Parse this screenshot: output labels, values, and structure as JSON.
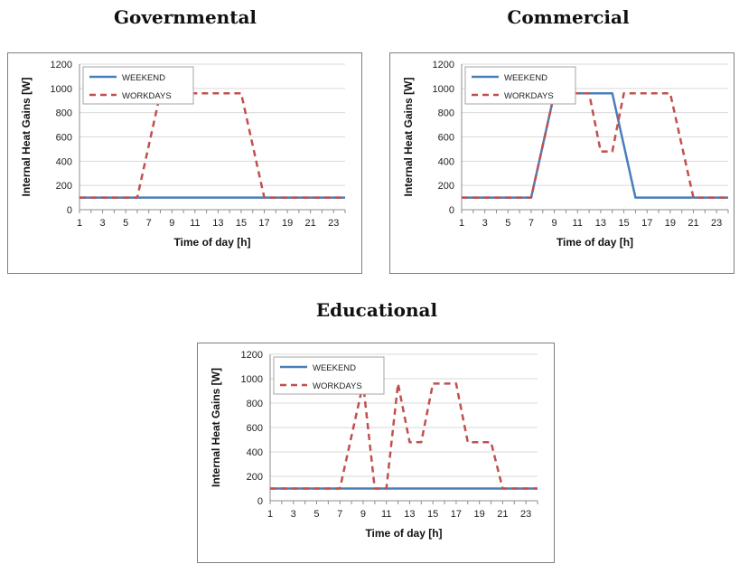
{
  "chart_data": [
    {
      "type": "line",
      "title": "Governmental",
      "xlabel": "Time of day [h]",
      "ylabel": "Internal Heat Gains [W]",
      "ylim": [
        0,
        1200
      ],
      "yticks": [
        0,
        200,
        400,
        600,
        800,
        1000,
        1200
      ],
      "xlim": [
        1,
        24
      ],
      "xtick_labels": [
        "1",
        "3",
        "5",
        "7",
        "9",
        "11",
        "13",
        "15",
        "17",
        "19",
        "21",
        "23"
      ],
      "grid": true,
      "legend_position": "top-left",
      "x": [
        1,
        2,
        3,
        4,
        5,
        6,
        7,
        8,
        9,
        10,
        11,
        12,
        13,
        14,
        15,
        16,
        17,
        18,
        19,
        20,
        21,
        22,
        23,
        24
      ],
      "series": [
        {
          "name": "WEEKEND",
          "color": "#4a7ebb",
          "dash": "solid",
          "values": [
            100,
            100,
            100,
            100,
            100,
            100,
            100,
            100,
            100,
            100,
            100,
            100,
            100,
            100,
            100,
            100,
            100,
            100,
            100,
            100,
            100,
            100,
            100,
            100
          ]
        },
        {
          "name": "WORKDAYS",
          "color": "#c0504d",
          "dash": "dashed",
          "values": [
            100,
            100,
            100,
            100,
            100,
            100,
            530,
            960,
            960,
            960,
            960,
            960,
            960,
            960,
            960,
            530,
            100,
            100,
            100,
            100,
            100,
            100,
            100,
            100
          ]
        }
      ]
    },
    {
      "type": "line",
      "title": "Commercial",
      "xlabel": "Time of day [h]",
      "ylabel": "Internal Heat Gains [W]",
      "ylim": [
        0,
        1200
      ],
      "yticks": [
        0,
        200,
        400,
        600,
        800,
        1000,
        1200
      ],
      "xlim": [
        1,
        24
      ],
      "xtick_labels": [
        "1",
        "3",
        "5",
        "7",
        "9",
        "11",
        "13",
        "15",
        "17",
        "19",
        "21",
        "23"
      ],
      "grid": true,
      "legend_position": "top-left",
      "x": [
        1,
        2,
        3,
        4,
        5,
        6,
        7,
        8,
        9,
        10,
        11,
        12,
        13,
        14,
        15,
        16,
        17,
        18,
        19,
        20,
        21,
        22,
        23,
        24
      ],
      "series": [
        {
          "name": "WEEKEND",
          "color": "#4a7ebb",
          "dash": "solid",
          "values": [
            100,
            100,
            100,
            100,
            100,
            100,
            100,
            530,
            960,
            960,
            960,
            960,
            960,
            960,
            530,
            100,
            100,
            100,
            100,
            100,
            100,
            100,
            100,
            100
          ]
        },
        {
          "name": "WORKDAYS",
          "color": "#c0504d",
          "dash": "dashed",
          "values": [
            100,
            100,
            100,
            100,
            100,
            100,
            100,
            530,
            960,
            960,
            960,
            960,
            480,
            480,
            960,
            960,
            960,
            960,
            960,
            530,
            100,
            100,
            100,
            100
          ]
        }
      ]
    },
    {
      "type": "line",
      "title": "Educational",
      "xlabel": "Time of day [h]",
      "ylabel": "Internal Heat Gains [W]",
      "ylim": [
        0,
        1200
      ],
      "yticks": [
        0,
        200,
        400,
        600,
        800,
        1000,
        1200
      ],
      "xlim": [
        1,
        24
      ],
      "xtick_labels": [
        "1",
        "3",
        "5",
        "7",
        "9",
        "11",
        "13",
        "15",
        "17",
        "19",
        "21",
        "23"
      ],
      "grid": true,
      "legend_position": "top-left",
      "x": [
        1,
        2,
        3,
        4,
        5,
        6,
        7,
        8,
        9,
        10,
        11,
        12,
        13,
        14,
        15,
        16,
        17,
        18,
        19,
        20,
        21,
        22,
        23,
        24
      ],
      "series": [
        {
          "name": "WEEKEND",
          "color": "#4a7ebb",
          "dash": "solid",
          "values": [
            100,
            100,
            100,
            100,
            100,
            100,
            100,
            100,
            100,
            100,
            100,
            100,
            100,
            100,
            100,
            100,
            100,
            100,
            100,
            100,
            100,
            100,
            100,
            100
          ]
        },
        {
          "name": "WORKDAYS",
          "color": "#c0504d",
          "dash": "dashed",
          "values": [
            100,
            100,
            100,
            100,
            100,
            100,
            100,
            530,
            960,
            100,
            100,
            960,
            480,
            480,
            960,
            960,
            960,
            480,
            480,
            480,
            100,
            100,
            100,
            100
          ]
        }
      ]
    }
  ]
}
